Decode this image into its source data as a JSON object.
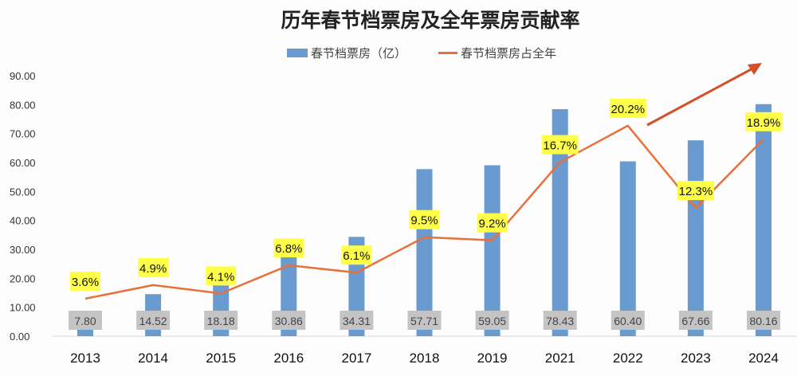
{
  "chart_data": {
    "type": "bar+line",
    "title": "历年春节档票房及全年票房贡献率",
    "categories": [
      "2013",
      "2014",
      "2015",
      "2016",
      "2017",
      "2018",
      "2019",
      "2021",
      "2022",
      "2023",
      "2024"
    ],
    "series": [
      {
        "name": "春节档票房（亿）",
        "type": "bar",
        "axis": "left",
        "color": "#6a9bd0",
        "values": [
          7.8,
          14.52,
          18.18,
          30.86,
          34.31,
          57.71,
          59.05,
          78.43,
          60.4,
          67.66,
          80.16
        ],
        "labels": [
          "7.80",
          "14.52",
          "18.18",
          "30.86",
          "34.31",
          "57.71",
          "59.05",
          "78.43",
          "60.40",
          "67.66",
          "80.16"
        ]
      },
      {
        "name": "春节档票房占全年",
        "type": "line",
        "axis": "right-hidden",
        "color": "#e8703a",
        "values": [
          3.6,
          4.9,
          4.1,
          6.8,
          6.1,
          9.5,
          9.2,
          16.7,
          20.2,
          12.3,
          18.9
        ],
        "labels": [
          "3.6%",
          "4.9%",
          "4.1%",
          "6.8%",
          "6.1%",
          "9.5%",
          "9.2%",
          "16.7%",
          "20.2%",
          "12.3%",
          "18.9%"
        ]
      }
    ],
    "yaxis_left": {
      "range": [
        0,
        90
      ],
      "ticks": [
        "0.00",
        "10.00",
        "20.00",
        "30.00",
        "40.00",
        "50.00",
        "60.00",
        "70.00",
        "80.00",
        "90.00"
      ]
    },
    "yaxis_right_range_percent": [
      0,
      25
    ],
    "grid": false,
    "legend": "top-center",
    "annotations": [
      "upward trend arrow (decorative)"
    ],
    "colors": {
      "bar_label_bg": "#c4c4c4",
      "line_label_bg": "#ffff4a"
    }
  }
}
